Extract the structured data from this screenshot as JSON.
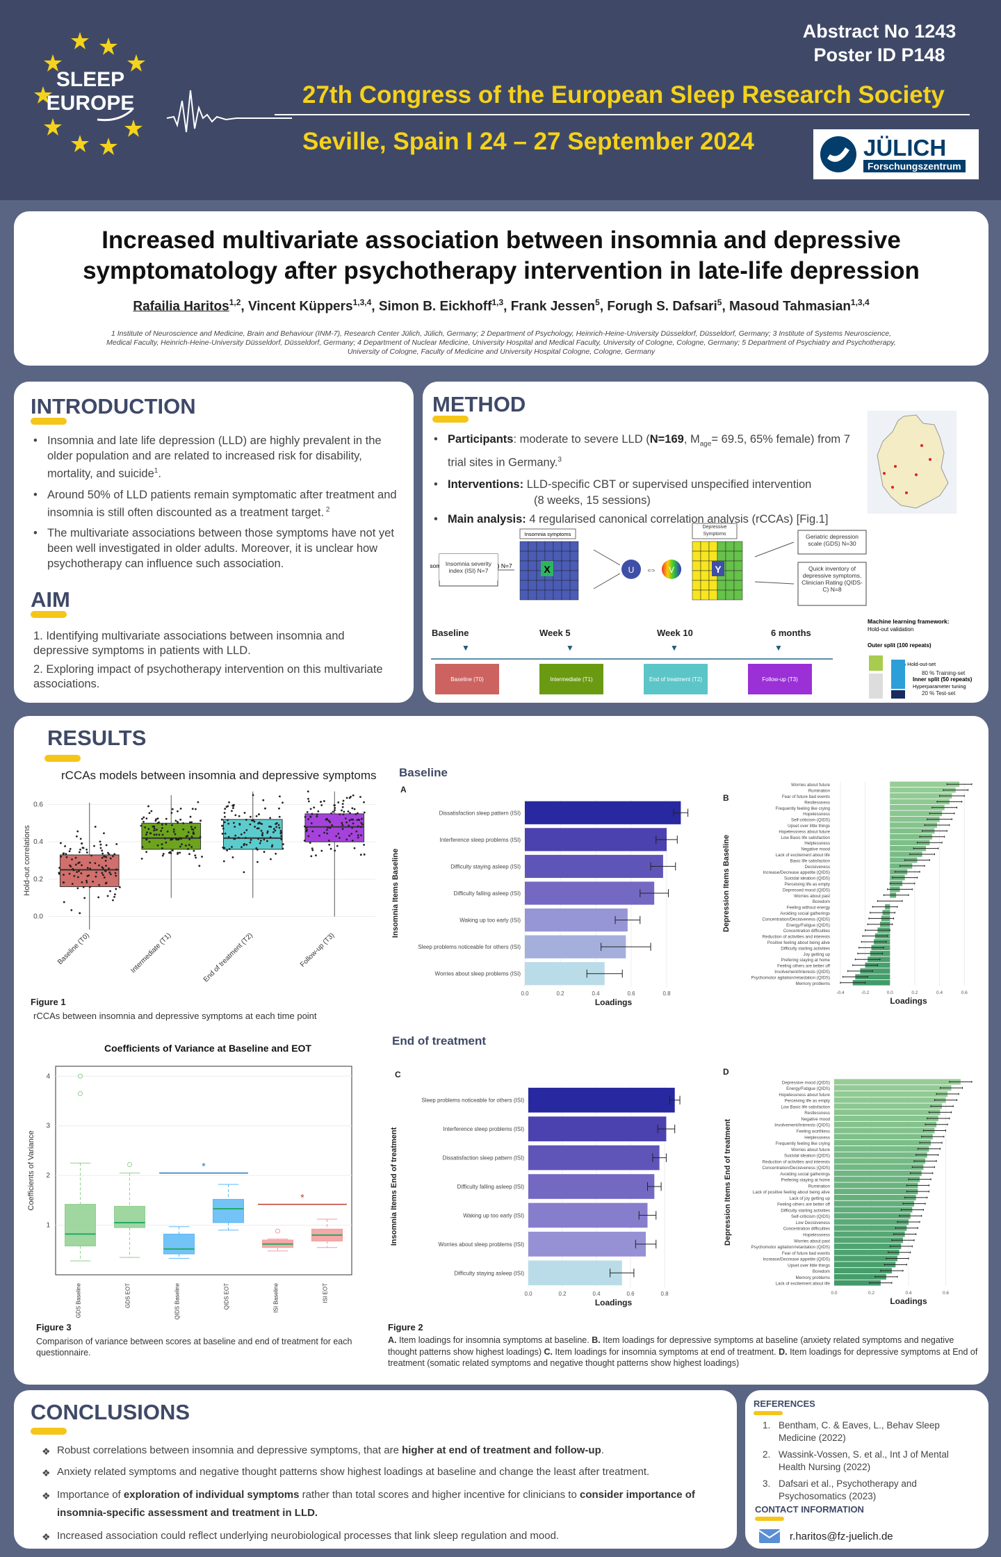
{
  "header": {
    "logo_line1": "SLEEP",
    "logo_line2": "EUROPE",
    "abstract_no": "Abstract No 1243",
    "poster_id": "Poster ID P148",
    "congress": "27th Congress of the European Sleep Research Society",
    "location": "Seville, Spain I 24 – 27 September 2024",
    "julich_name": "JÜLICH",
    "julich_sub": "Forschungszentrum"
  },
  "title": {
    "line1": "Increased multivariate association between insomnia and depressive",
    "line2": "symptomatology after psychotherapy intervention in late-life depression",
    "authors": [
      {
        "name": "Rafailia Haritos",
        "sup": "1,2"
      },
      {
        "name": "Vincent Küppers",
        "sup": "1,3,4"
      },
      {
        "name": "Simon B. Eickhoff",
        "sup": "1,3"
      },
      {
        "name": "Frank Jessen",
        "sup": "5"
      },
      {
        "name": "Forugh S. Dafsari",
        "sup": "5"
      },
      {
        "name": "Masoud Tahmasian",
        "sup": "1,3,4"
      }
    ],
    "aff1": "1 Institute of Neuroscience and Medicine, Brain and Behaviour (INM-7), Research Center Jülich, Jülich, Germany; 2 Department of Psychology, Heinrich-Heine-University Düsseldorf, Düsseldorf, Germany; 3 Institute of Systems Neuroscience,",
    "aff2": "Medical Faculty, Heinrich-Heine-University Düsseldorf, Düsseldorf, Germany; 4 Department of Nuclear Medicine, University Hospital and Medical Faculty, University of Cologne, Cologne, Germany; 5 Department of Psychiatry and Psychotherapy,",
    "aff3": "University of Cologne, Faculty of Medicine and University Hospital Cologne, Cologne, Germany"
  },
  "intro": {
    "heading": "INTRODUCTION",
    "b1": "Insomnia and late life depression (LLD) are highly prevalent in the older population and are related to increased risk for disability, mortality, and suicide",
    "b1_sup": "1",
    "b1_end": ".",
    "b2": "Around 50% of LLD patients remain symptomatic after treatment and insomnia is still often discounted as a treatment target.",
    "b2_sup": " 2",
    "b3": "The multivariate associations between those symptoms have not yet been well investigated in older adults. Moreover, it is unclear how psychotherapy can influence such association."
  },
  "aim": {
    "heading": "AIM",
    "a1": "1. Identifying multivariate associations between insomnia and depressive symptoms in patients with LLD.",
    "a2": "2. Exploring impact of psychotherapy intervention on this multivariate associations."
  },
  "method": {
    "heading": "METHOD",
    "p_label": "Participants",
    "p_text1": ": moderate to severe LLD (",
    "p_n": "N=169",
    "p_text2": ", M",
    "p_sub": "age",
    "p_text3": "= 69.5, 65% female) from 7 trial sites in Germany.",
    "p_sup": "3",
    "i_label": "Interventions:",
    "i_text1": " LLD-specific CBT or supervised unspecified intervention",
    "i_text2": "(8 weeks, 15 sessions)",
    "m_label": "Main analysis:",
    "m_text": " 4 regularised canonical correlation analysis (rCCAs) [Fig.1]",
    "diag": {
      "insomnia_symptoms": "Insomnia symptoms",
      "depressive_symptoms": "Depressive Symptoms",
      "isi_box": "Insomnia severity index (ISI) N=7",
      "gds_box": "Geriatric depression scale (GDS) N=30",
      "qids_box": "Quick inventory of depressive symptoms, Clinician Rating (QIDS-C) N=8",
      "x": "X",
      "y": "Y",
      "u": "U",
      "v": "V",
      "ml_title": "Machine learning framework:",
      "ml_sub": "Hold-out validation",
      "outer": "Outer split (100 repeats)",
      "holdout": "20 % Hold-out-set",
      "inner": "Inner split (50 repeats)",
      "hyper": "Hyperparameter tuning",
      "train": "80 % Training-set",
      "test": "20 % Test-set"
    },
    "timeline": [
      {
        "label": "Baseline",
        "box": "Baseline (T0)",
        "color": "#cc6360"
      },
      {
        "label": "Week 5",
        "box": "Intermediate (T1)",
        "color": "#6a9a12"
      },
      {
        "label": "Week 10",
        "box": "End of treatment (T2)",
        "color": "#5cc5c7"
      },
      {
        "label": "6 months",
        "box": "Follow-up (T3)",
        "color": "#9b30d6"
      }
    ]
  },
  "results": {
    "heading": "RESULTS",
    "fig1_title": "rCCAs models between insomnia and depressive symptoms",
    "fig1_caption_title": "Figure 1",
    "fig1_caption": "rCCAs between insomnia and depressive symptoms at each time point",
    "baseline_title": "Baseline",
    "eot_title": "End of treatment",
    "fig3_caption_title": "Figure 3",
    "fig3_caption": "Comparison of variance between scores at baseline and end of treatment for each questionnaire.",
    "fig2_caption_title": "Figure 2",
    "fig2_caption_parts": [
      {
        "b": "A.",
        "t": " Item loadings for insomnia symptoms at baseline. "
      },
      {
        "b": "B.",
        "t": " Item loadings for depressive symptoms at baseline (anxiety related symptoms and negative thought patterns show highest loadings) "
      },
      {
        "b": "C.",
        "t": " Item loadings for insomnia symptoms at end of treatment. "
      },
      {
        "b": "D.",
        "t": " Item loadings for depressive symptoms at End of treatment (somatic related symptoms and negative thought patterns show highest loadings)"
      }
    ]
  },
  "conclusions": {
    "heading": "CONCLUSIONS",
    "c1a": "Robust correlations between insomnia and depressive symptoms, that are ",
    "c1b": "higher at end of treatment and follow-up",
    "c1c": ".",
    "c2": "Anxiety related symptoms and negative thought patterns show highest loadings at baseline and change the least after treatment.",
    "c3a": "Importance of ",
    "c3b": "exploration of individual symptoms",
    "c3c": " rather than total scores and higher incentive for clinicians to ",
    "c3d": "consider importance of insomnia-specific assessment and treatment in LLD.",
    "c4": "Increased association could reflect underlying neurobiological processes that link sleep regulation and mood."
  },
  "references": {
    "heading": "REFERENCES",
    "r1": "Bentham, C. & Eaves, L., Behav Sleep Medicine (2022)",
    "r2": "Wassink-Vossen, S. et al., Int J of Mental Health Nursing (2022)",
    "r3": "Dafsari et al., Psychotherapy and Psychosomatics (2023)",
    "contact_heading": "CONTACT INFORMATION",
    "email": "r.haritos@fz-juelich.de"
  },
  "chart_data": [
    {
      "id": "fig1",
      "type": "box",
      "title": "rCCAs models between insomnia and depressive symptoms",
      "ylabel": "Hold-out correlations",
      "ylim": [
        -0.05,
        0.65
      ],
      "yticks": [
        0.0,
        0.2,
        0.4,
        0.6
      ],
      "categories": [
        "Baseline (T0)",
        "Intermediate (T1)",
        "End of treatment (T2)",
        "Follow-up (T3)"
      ],
      "colors": [
        "#cc5f5c",
        "#5c9a06",
        "#4ac5c8",
        "#9c2ed8"
      ],
      "boxes": [
        {
          "min": -0.07,
          "q1": 0.16,
          "median": 0.25,
          "q3": 0.33,
          "max": 0.61
        },
        {
          "min": 0.1,
          "q1": 0.36,
          "median": 0.42,
          "q3": 0.5,
          "max": 0.65
        },
        {
          "min": 0.1,
          "q1": 0.36,
          "median": 0.42,
          "q3": 0.52,
          "max": 0.67
        },
        {
          "min": 0.0,
          "q1": 0.4,
          "median": 0.48,
          "q3": 0.55,
          "max": 0.67
        }
      ]
    },
    {
      "id": "fig3",
      "type": "box",
      "title": "Coefficients of Variance at Baseline and EOT",
      "ylabel": "Coefficients of Variance",
      "ylim": [
        0,
        4.2
      ],
      "yticks": [
        1,
        2,
        3,
        4
      ],
      "categories": [
        "GDS Baseline",
        "GDS EOT",
        "QIDS Baseline",
        "QIDS EOT",
        "ISI Baseline",
        "ISI EOT"
      ],
      "colors": [
        "#8fcf8f",
        "#8fcf8f",
        "#5bb8f5",
        "#5bb8f5",
        "#f59a9a",
        "#f59a9a"
      ],
      "boxes": [
        {
          "min": 0.28,
          "q1": 0.58,
          "median": 0.82,
          "q3": 1.42,
          "max": 2.25
        },
        {
          "min": 0.35,
          "q1": 0.95,
          "median": 1.05,
          "q3": 1.38,
          "max": 2.05
        },
        {
          "min": 0.33,
          "q1": 0.42,
          "median": 0.52,
          "q3": 0.82,
          "max": 0.97
        },
        {
          "min": 0.9,
          "q1": 1.05,
          "median": 1.33,
          "q3": 1.52,
          "max": 1.82
        },
        {
          "min": 0.48,
          "q1": 0.55,
          "median": 0.62,
          "q3": 0.7,
          "max": 0.72
        },
        {
          "min": 0.55,
          "q1": 0.68,
          "median": 0.8,
          "q3": 0.92,
          "max": 1.12
        }
      ],
      "outliers": [
        [
          0,
          4.0
        ],
        [
          0,
          3.65
        ],
        [
          1,
          2.22
        ],
        [
          4,
          0.88
        ]
      ],
      "sig": [
        {
          "from": 2,
          "to": 3,
          "y": 2.05,
          "color": "#1f77b4",
          "mark": "*"
        },
        {
          "from": 4,
          "to": 5,
          "y": 1.42,
          "color": "#c0392b",
          "mark": "*"
        }
      ]
    },
    {
      "id": "fig2a",
      "panel": "A",
      "type": "bar",
      "ylabel": "Insomnia Items Baseline",
      "xlabel": "Loadings",
      "xlim": [
        0,
        1
      ],
      "xticks": [
        0.0,
        0.2,
        0.4,
        0.6,
        0.8
      ],
      "categories": [
        "Dissatisfaction sleep pattern (ISI)",
        "Interference sleep problems (ISI)",
        "Difficulty staying asleep (ISI)",
        "Difficulty falling asleep (ISI)",
        "Waking up too early (ISI)",
        "Sleep problems noticeable for others (ISI)",
        "Worries about sleep problems (ISI)"
      ],
      "values": [
        0.88,
        0.8,
        0.78,
        0.73,
        0.58,
        0.57,
        0.45
      ],
      "errors": [
        0.04,
        0.06,
        0.07,
        0.08,
        0.07,
        0.14,
        0.1
      ]
    },
    {
      "id": "fig2c",
      "panel": "C",
      "type": "bar",
      "ylabel": "Insomnia Items End of treatment",
      "xlabel": "Loadings",
      "xlim": [
        0,
        1
      ],
      "xticks": [
        0.0,
        0.2,
        0.4,
        0.6,
        0.8
      ],
      "categories": [
        "Sleep problems noticeable for others (ISI)",
        "Interference sleep problems (ISI)",
        "Dissatisfaction sleep pattern (ISI)",
        "Difficulty falling asleep (ISI)",
        "Waking up too early (ISI)",
        "Worries about sleep problems (ISI)",
        "Difficulty staying asleep (ISI)"
      ],
      "values": [
        0.86,
        0.81,
        0.77,
        0.74,
        0.7,
        0.69,
        0.55
      ],
      "errors": [
        0.03,
        0.05,
        0.04,
        0.04,
        0.05,
        0.06,
        0.07
      ]
    },
    {
      "id": "fig2b",
      "panel": "B",
      "type": "bar",
      "ylabel": "Depression Items Baseline",
      "xlabel": "Loadings",
      "xlim": [
        -0.45,
        0.75
      ],
      "xticks": [
        -0.4,
        -0.2,
        0.0,
        0.2,
        0.4,
        0.6
      ],
      "categories": [
        "Worries about future",
        "Rumination",
        "Fear of future bad events",
        "Restlessness",
        "Frequently feeling like crying",
        "Hopelessness",
        "Self-criticism (QIDS)",
        "Upset over little things",
        "Hopelessness about future",
        "Low Basic life satisfaction",
        "Helplessness",
        "Negative mood",
        "Lack of excitement about life",
        "Basic life satisfaction",
        "Decisiveness",
        "Increase/Decrease appetite (QIDS)",
        "Suicidal ideation (QIDS)",
        "Perceiving life as empty",
        "Depressed mood (QIDS)",
        "Worries about past",
        "Boredom",
        "Feeling without energy",
        "Avoiding social gatherings",
        "Concentration/Decisiveness (QIDS)",
        "Energy/Fatigue (QIDS)",
        "Concentration difficulties",
        "Reduction of activities and interests",
        "Positive feeling about being alive",
        "Difficulty starting activities",
        "Joy getting up",
        "Prefering staying at home",
        "Feeling others are better off",
        "Involvement/Interests (QIDS)",
        "Psychomotor agitation/retardation (QIDS)",
        "Memory problems"
      ],
      "values": [
        0.56,
        0.53,
        0.5,
        0.48,
        0.44,
        0.42,
        0.4,
        0.38,
        0.36,
        0.34,
        0.32,
        0.29,
        0.26,
        0.22,
        0.18,
        0.14,
        0.12,
        0.1,
        0.08,
        0.05,
        0.0,
        -0.04,
        -0.06,
        -0.07,
        -0.08,
        -0.1,
        -0.12,
        -0.13,
        -0.15,
        -0.16,
        -0.18,
        -0.2,
        -0.24,
        -0.28,
        -0.3
      ],
      "errors": [
        0.1,
        0.1,
        0.1,
        0.1,
        0.1,
        0.1,
        0.1,
        0.1,
        0.1,
        0.1,
        0.1,
        0.1,
        0.1,
        0.1,
        0.1,
        0.1,
        0.1,
        0.1,
        0.1,
        0.1,
        0.1,
        0.1,
        0.1,
        0.1,
        0.1,
        0.1,
        0.1,
        0.1,
        0.1,
        0.1,
        0.1,
        0.1,
        0.1,
        0.1,
        0.1
      ]
    },
    {
      "id": "fig2d",
      "panel": "D",
      "type": "bar",
      "ylabel": "Depression Items End of treatment",
      "xlabel": "Loadings",
      "xlim": [
        0,
        0.8
      ],
      "xticks": [
        0.0,
        0.2,
        0.4,
        0.6
      ],
      "categories": [
        "Depressive mood (QIDS)",
        "Energy/Fatigue (QIDS)",
        "Hopelessness about future",
        "Perceiving life as empty",
        "Low Basic life satisfaction",
        "Restlessness",
        "Negative mood",
        "Involvement/Interests (QIDS)",
        "Feeling worthless",
        "Helplessness",
        "Frequently feeling like crying",
        "Worries about future",
        "Suicidal ideation (QIDS)",
        "Reduction of activities and interests",
        "Concentration/Decisiveness (QIDS)",
        "Avoiding social gatherings",
        "Prefering staying at home",
        "Rumination",
        "Lack of positive feeling about being alive",
        "Lack of joy getting up",
        "Feeling others are better off",
        "Difficulty starting activities",
        "Self-criticism (QIDS)",
        "Low Decisiveness",
        "Concentration difficulties",
        "Hopelessness",
        "Worries about past",
        "Psychomotor agitation/retardation (QIDS)",
        "Fear of future bad events",
        "Increase/Decrease appetite (QIDS)",
        "Upset over little things",
        "Boredom",
        "Memory problems",
        "Lack of excitement about life"
      ],
      "values": [
        0.68,
        0.63,
        0.61,
        0.6,
        0.58,
        0.57,
        0.56,
        0.55,
        0.54,
        0.53,
        0.52,
        0.51,
        0.5,
        0.49,
        0.48,
        0.47,
        0.46,
        0.45,
        0.45,
        0.44,
        0.43,
        0.42,
        0.41,
        0.4,
        0.39,
        0.38,
        0.37,
        0.36,
        0.35,
        0.34,
        0.33,
        0.31,
        0.28,
        0.25
      ],
      "errors": [
        0.06,
        0.06,
        0.06,
        0.06,
        0.06,
        0.06,
        0.06,
        0.06,
        0.06,
        0.06,
        0.06,
        0.06,
        0.06,
        0.06,
        0.06,
        0.06,
        0.06,
        0.06,
        0.06,
        0.06,
        0.06,
        0.06,
        0.06,
        0.06,
        0.06,
        0.06,
        0.06,
        0.06,
        0.06,
        0.06,
        0.06,
        0.06,
        0.06,
        0.06
      ]
    }
  ]
}
